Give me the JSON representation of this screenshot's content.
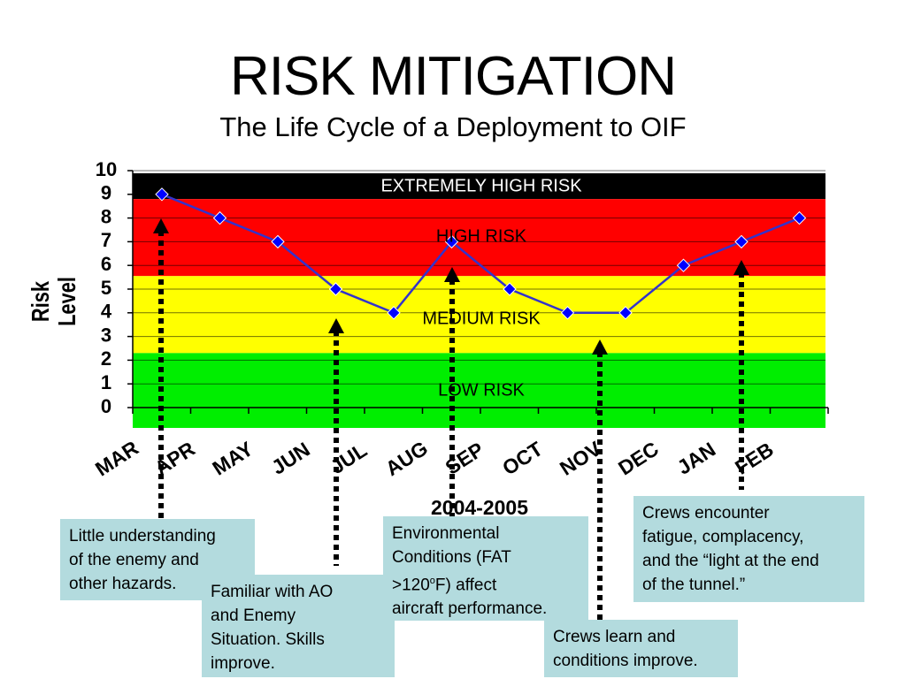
{
  "title": "RISK MITIGATION",
  "subtitle": "The Life Cycle of a Deployment to OIF",
  "chart_data": {
    "type": "line",
    "categories": [
      "MAR",
      "APR",
      "MAY",
      "JUN",
      "JUL",
      "AUG",
      "SEP",
      "OCT",
      "NOV",
      "DEC",
      "JAN",
      "FEB"
    ],
    "series": [
      {
        "values": [
          9,
          8,
          7,
          5,
          4,
          7,
          5,
          4,
          4,
          6,
          7,
          8
        ],
        "color": "#3333cc",
        "marker_color": "#0000ff"
      }
    ],
    "xlabel": "2004-2005",
    "ylabel": "Risk Level",
    "ylim": [
      0,
      10
    ],
    "yticks": [
      0,
      1,
      2,
      3,
      4,
      5,
      6,
      7,
      8,
      9,
      10
    ],
    "grid": true,
    "bands": [
      {
        "label": "EXTREMELY HIGH RISK",
        "from": 8.8,
        "to": 10,
        "color": "#000000",
        "text_color": "#ffffff"
      },
      {
        "label": "HIGH RISK",
        "from": 5.55,
        "to": 8.8,
        "color": "#ff0000",
        "text_color": "#000000"
      },
      {
        "label": "MEDIUM RISK",
        "from": 2.3,
        "to": 5.55,
        "color": "#ffff00",
        "text_color": "#000000"
      },
      {
        "label": "LOW RISK",
        "from": 0,
        "to": 2.3,
        "color": "#00ee00",
        "text_color": "#000000"
      }
    ]
  },
  "annotations": {
    "note1": {
      "lines": [
        "Little understanding",
        "of the enemy and",
        "other hazards."
      ]
    },
    "note2": {
      "lines": [
        "Familiar with AO",
        "and Enemy",
        "Situation.  Skills",
        "improve."
      ]
    },
    "note3": {
      "line1": "Environmental",
      "line2": "Conditions (FAT",
      "line3_pre": ">120",
      "line3_sup": "o",
      "line3_post": "F) affect",
      "line4": "aircraft performance."
    },
    "note4": {
      "lines": [
        "Crews learn and",
        "conditions improve."
      ]
    },
    "note5": {
      "lines": [
        "Crews encounter",
        "fatigue, complacency,",
        "and the “light at the end",
        "of the tunnel.”"
      ]
    }
  },
  "colors": {
    "note_bg": "#b3dbde",
    "arrow": "#000000"
  }
}
